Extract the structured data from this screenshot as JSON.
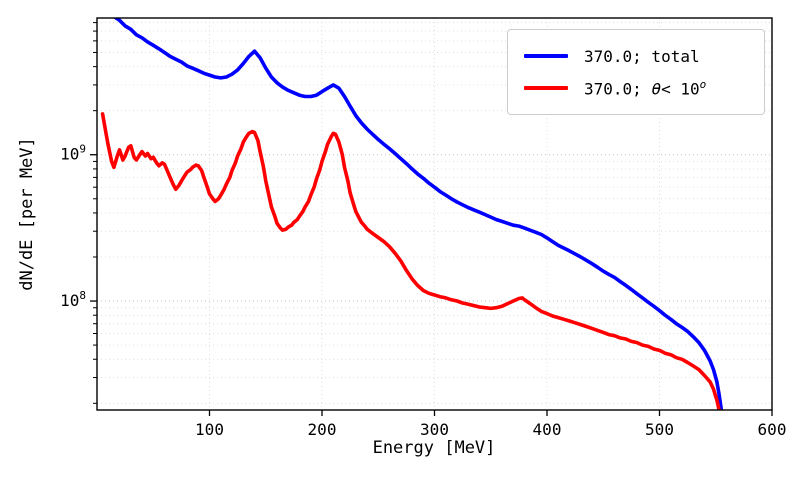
{
  "axes": {
    "xlabel": "Energy [MeV]",
    "ylabel": "dN/dE [per MeV]",
    "x_ticks": [
      100,
      200,
      300,
      400,
      500,
      600
    ],
    "y_ticks": [
      {
        "value": 100000000.0,
        "base": "10",
        "exp": "8"
      },
      {
        "value": 1000000000.0,
        "base": "10",
        "exp": "9"
      }
    ]
  },
  "legend": {
    "entries": [
      {
        "color": "#0000ff",
        "label": "370.0; total"
      },
      {
        "color": "#ff0000",
        "label_prefix": "370.0; ",
        "label_theta": "θ",
        "label_mid": "< 10",
        "label_sup": "o"
      }
    ]
  },
  "chart_data": {
    "type": "line",
    "title": "",
    "xlabel": "Energy [MeV]",
    "ylabel": "dN/dE [per MeV]",
    "xscale": "linear",
    "yscale": "log",
    "xlim": [
      0,
      600
    ],
    "ylim": [
      18000000.0,
      8600000000.0
    ],
    "grid": true,
    "legend_position": "upper right",
    "series": [
      {
        "name": "370.0; total",
        "color": "#0000ff",
        "linewidth": 3.6,
        "points": [
          [
            5,
            10500000000.0
          ],
          [
            10,
            9500000000.0
          ],
          [
            15,
            8800000000.0
          ],
          [
            20,
            8300000000.0
          ],
          [
            25,
            7600000000.0
          ],
          [
            30,
            7200000000.0
          ],
          [
            35,
            6600000000.0
          ],
          [
            40,
            6300000000.0
          ],
          [
            45,
            5900000000.0
          ],
          [
            50,
            5600000000.0
          ],
          [
            55,
            5300000000.0
          ],
          [
            60,
            5000000000.0
          ],
          [
            65,
            4700000000.0
          ],
          [
            70,
            4500000000.0
          ],
          [
            75,
            4300000000.0
          ],
          [
            80,
            4050000000.0
          ],
          [
            85,
            3900000000.0
          ],
          [
            90,
            3750000000.0
          ],
          [
            95,
            3600000000.0
          ],
          [
            100,
            3500000000.0
          ],
          [
            105,
            3400000000.0
          ],
          [
            110,
            3350000000.0
          ],
          [
            115,
            3400000000.0
          ],
          [
            120,
            3550000000.0
          ],
          [
            125,
            3800000000.0
          ],
          [
            130,
            4200000000.0
          ],
          [
            135,
            4700000000.0
          ],
          [
            140,
            5100000000.0
          ],
          [
            145,
            4600000000.0
          ],
          [
            150,
            3900000000.0
          ],
          [
            155,
            3400000000.0
          ],
          [
            160,
            3100000000.0
          ],
          [
            165,
            2900000000.0
          ],
          [
            170,
            2750000000.0
          ],
          [
            175,
            2650000000.0
          ],
          [
            180,
            2550000000.0
          ],
          [
            185,
            2500000000.0
          ],
          [
            190,
            2500000000.0
          ],
          [
            195,
            2550000000.0
          ],
          [
            200,
            2700000000.0
          ],
          [
            205,
            2850000000.0
          ],
          [
            210,
            3000000000.0
          ],
          [
            215,
            2850000000.0
          ],
          [
            220,
            2500000000.0
          ],
          [
            225,
            2150000000.0
          ],
          [
            230,
            1850000000.0
          ],
          [
            235,
            1650000000.0
          ],
          [
            240,
            1500000000.0
          ],
          [
            245,
            1380000000.0
          ],
          [
            250,
            1270000000.0
          ],
          [
            255,
            1180000000.0
          ],
          [
            260,
            1100000000.0
          ],
          [
            265,
            1020000000.0
          ],
          [
            270,
            940000000.0
          ],
          [
            275,
            870000000.0
          ],
          [
            280,
            800000000.0
          ],
          [
            285,
            740000000.0
          ],
          [
            290,
            690000000.0
          ],
          [
            295,
            640000000.0
          ],
          [
            300,
            600000000.0
          ],
          [
            305,
            560000000.0
          ],
          [
            310,
            530000000.0
          ],
          [
            315,
            500000000.0
          ],
          [
            320,
            475000000.0
          ],
          [
            325,
            455000000.0
          ],
          [
            330,
            435000000.0
          ],
          [
            335,
            420000000.0
          ],
          [
            340,
            405000000.0
          ],
          [
            345,
            390000000.0
          ],
          [
            350,
            375000000.0
          ],
          [
            355,
            360000000.0
          ],
          [
            360,
            350000000.0
          ],
          [
            365,
            340000000.0
          ],
          [
            370,
            330000000.0
          ],
          [
            375,
            325000000.0
          ],
          [
            380,
            315000000.0
          ],
          [
            385,
            305000000.0
          ],
          [
            390,
            295000000.0
          ],
          [
            395,
            285000000.0
          ],
          [
            400,
            270000000.0
          ],
          [
            405,
            255000000.0
          ],
          [
            410,
            240000000.0
          ],
          [
            415,
            230000000.0
          ],
          [
            420,
            220000000.0
          ],
          [
            425,
            210000000.0
          ],
          [
            430,
            200000000.0
          ],
          [
            435,
            190000000.0
          ],
          [
            440,
            180000000.0
          ],
          [
            445,
            170000000.0
          ],
          [
            450,
            160000000.0
          ],
          [
            455,
            152000000.0
          ],
          [
            460,
            145000000.0
          ],
          [
            465,
            136000000.0
          ],
          [
            470,
            128000000.0
          ],
          [
            475,
            120000000.0
          ],
          [
            480,
            112000000.0
          ],
          [
            485,
            105000000.0
          ],
          [
            490,
            98000000.0
          ],
          [
            495,
            92000000.0
          ],
          [
            500,
            86000000.0
          ],
          [
            505,
            80000000.0
          ],
          [
            510,
            75000000.0
          ],
          [
            515,
            70000000.0
          ],
          [
            520,
            66000000.0
          ],
          [
            525,
            62000000.0
          ],
          [
            530,
            57000000.0
          ],
          [
            535,
            52000000.0
          ],
          [
            540,
            46000000.0
          ],
          [
            545,
            39000000.0
          ],
          [
            548,
            34000000.0
          ],
          [
            551,
            28000000.0
          ],
          [
            553,
            23000000.0
          ],
          [
            555,
            18000000.0
          ],
          [
            556,
            14000000.0
          ]
        ]
      },
      {
        "name": "370.0; θ< 10^o",
        "color": "#ff0000",
        "linewidth": 3.6,
        "points": [
          [
            5,
            1900000000.0
          ],
          [
            8,
            1400000000.0
          ],
          [
            10,
            1150000000.0
          ],
          [
            13,
            900000000.0
          ],
          [
            15,
            820000000.0
          ],
          [
            18,
            980000000.0
          ],
          [
            20,
            1080000000.0
          ],
          [
            23,
            920000000.0
          ],
          [
            25,
            980000000.0
          ],
          [
            28,
            1120000000.0
          ],
          [
            30,
            1150000000.0
          ],
          [
            33,
            960000000.0
          ],
          [
            35,
            920000000.0
          ],
          [
            38,
            1000000000.0
          ],
          [
            40,
            1050000000.0
          ],
          [
            43,
            980000000.0
          ],
          [
            45,
            1020000000.0
          ],
          [
            48,
            940000000.0
          ],
          [
            50,
            960000000.0
          ],
          [
            53,
            880000000.0
          ],
          [
            55,
            840000000.0
          ],
          [
            58,
            880000000.0
          ],
          [
            60,
            860000000.0
          ],
          [
            63,
            760000000.0
          ],
          [
            65,
            700000000.0
          ],
          [
            68,
            620000000.0
          ],
          [
            70,
            580000000.0
          ],
          [
            73,
            620000000.0
          ],
          [
            75,
            660000000.0
          ],
          [
            78,
            720000000.0
          ],
          [
            80,
            760000000.0
          ],
          [
            83,
            790000000.0
          ],
          [
            85,
            820000000.0
          ],
          [
            88,
            850000000.0
          ],
          [
            90,
            840000000.0
          ],
          [
            93,
            780000000.0
          ],
          [
            95,
            700000000.0
          ],
          [
            98,
            600000000.0
          ],
          [
            100,
            540000000.0
          ],
          [
            103,
            500000000.0
          ],
          [
            105,
            480000000.0
          ],
          [
            108,
            500000000.0
          ],
          [
            110,
            530000000.0
          ],
          [
            113,
            580000000.0
          ],
          [
            115,
            630000000.0
          ],
          [
            118,
            700000000.0
          ],
          [
            120,
            780000000.0
          ],
          [
            123,
            880000000.0
          ],
          [
            125,
            980000000.0
          ],
          [
            128,
            1100000000.0
          ],
          [
            130,
            1220000000.0
          ],
          [
            133,
            1330000000.0
          ],
          [
            135,
            1400000000.0
          ],
          [
            138,
            1440000000.0
          ],
          [
            140,
            1420000000.0
          ],
          [
            143,
            1250000000.0
          ],
          [
            145,
            1050000000.0
          ],
          [
            148,
            820000000.0
          ],
          [
            150,
            660000000.0
          ],
          [
            153,
            520000000.0
          ],
          [
            155,
            440000000.0
          ],
          [
            158,
            380000000.0
          ],
          [
            160,
            340000000.0
          ],
          [
            163,
            315000000.0
          ],
          [
            165,
            305000000.0
          ],
          [
            168,
            310000000.0
          ],
          [
            170,
            320000000.0
          ],
          [
            173,
            330000000.0
          ],
          [
            175,
            345000000.0
          ],
          [
            178,
            360000000.0
          ],
          [
            180,
            380000000.0
          ],
          [
            183,
            410000000.0
          ],
          [
            185,
            440000000.0
          ],
          [
            188,
            480000000.0
          ],
          [
            190,
            530000000.0
          ],
          [
            193,
            600000000.0
          ],
          [
            195,
            680000000.0
          ],
          [
            198,
            790000000.0
          ],
          [
            200,
            900000000.0
          ],
          [
            203,
            1050000000.0
          ],
          [
            205,
            1180000000.0
          ],
          [
            208,
            1320000000.0
          ],
          [
            210,
            1400000000.0
          ],
          [
            212,
            1380000000.0
          ],
          [
            215,
            1220000000.0
          ],
          [
            218,
            1000000000.0
          ],
          [
            220,
            820000000.0
          ],
          [
            223,
            660000000.0
          ],
          [
            225,
            550000000.0
          ],
          [
            228,
            460000000.0
          ],
          [
            230,
            410000000.0
          ],
          [
            233,
            370000000.0
          ],
          [
            235,
            345000000.0
          ],
          [
            238,
            325000000.0
          ],
          [
            240,
            310000000.0
          ],
          [
            245,
            290000000.0
          ],
          [
            250,
            272000000.0
          ],
          [
            255,
            255000000.0
          ],
          [
            260,
            235000000.0
          ],
          [
            265,
            212000000.0
          ],
          [
            270,
            188000000.0
          ],
          [
            275,
            162000000.0
          ],
          [
            280,
            142000000.0
          ],
          [
            285,
            128000000.0
          ],
          [
            290,
            118000000.0
          ],
          [
            295,
            113000000.0
          ],
          [
            300,
            110000000.0
          ],
          [
            305,
            107000000.0
          ],
          [
            310,
            105000000.0
          ],
          [
            315,
            102000000.0
          ],
          [
            320,
            100000000.0
          ],
          [
            325,
            97000000.0
          ],
          [
            330,
            95000000.0
          ],
          [
            335,
            93000000.0
          ],
          [
            340,
            91000000.0
          ],
          [
            345,
            90000000.0
          ],
          [
            350,
            89000000.0
          ],
          [
            355,
            90000000.0
          ],
          [
            360,
            92000000.0
          ],
          [
            365,
            96000000.0
          ],
          [
            370,
            100000000.0
          ],
          [
            375,
            104000000.0
          ],
          [
            378,
            105000000.0
          ],
          [
            380,
            102000000.0
          ],
          [
            385,
            96000000.0
          ],
          [
            390,
            90000000.0
          ],
          [
            395,
            85000000.0
          ],
          [
            400,
            82000000.0
          ],
          [
            405,
            79000000.0
          ],
          [
            410,
            77000000.0
          ],
          [
            415,
            75000000.0
          ],
          [
            420,
            73000000.0
          ],
          [
            425,
            71000000.0
          ],
          [
            430,
            69000000.0
          ],
          [
            435,
            67000000.0
          ],
          [
            440,
            65000000.0
          ],
          [
            445,
            63000000.0
          ],
          [
            450,
            61000000.0
          ],
          [
            455,
            59000000.0
          ],
          [
            460,
            58000000.0
          ],
          [
            465,
            56000000.0
          ],
          [
            470,
            55000000.0
          ],
          [
            475,
            53000000.0
          ],
          [
            480,
            52000000.0
          ],
          [
            485,
            50000000.0
          ],
          [
            490,
            49000000.0
          ],
          [
            495,
            47000000.0
          ],
          [
            500,
            46000000.0
          ],
          [
            505,
            44000000.0
          ],
          [
            510,
            43000000.0
          ],
          [
            515,
            41000000.0
          ],
          [
            520,
            40000000.0
          ],
          [
            525,
            38000000.0
          ],
          [
            530,
            36000000.0
          ],
          [
            535,
            34000000.0
          ],
          [
            540,
            31000000.0
          ],
          [
            545,
            28000000.0
          ],
          [
            548,
            25000000.0
          ],
          [
            551,
            21000000.0
          ],
          [
            553,
            18000000.0
          ],
          [
            555,
            15000000.0
          ],
          [
            556,
            13000000.0
          ]
        ]
      }
    ]
  }
}
